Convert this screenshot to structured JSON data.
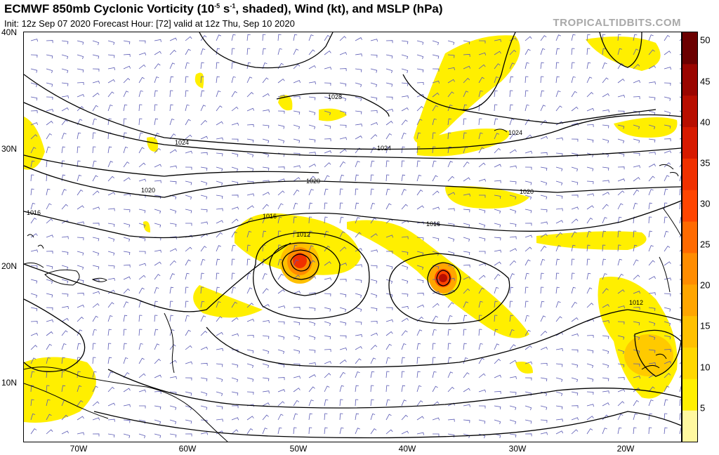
{
  "header": {
    "title_main": "ECMWF 850mb Cyclonic Vorticity (10",
    "title_exp": "-5",
    "title_unit": " s",
    "title_exp2": "-1",
    "title_rest": ", shaded), Wind (kt), and MSLP (hPa)",
    "subtitle": "Init: 12z Sep 07 2020   Forecast Hour: [72]   valid at 12z Thu, Sep 10 2020",
    "brand": "TROPICALTIDBITS.COM"
  },
  "axes": {
    "lat_labels": [
      "40N",
      "30N",
      "20N",
      "10N"
    ],
    "lon_labels": [
      "70W",
      "60W",
      "50W",
      "40W",
      "30W",
      "20W"
    ]
  },
  "isobar_labels": [
    "1028",
    "1024",
    "1024",
    "1024",
    "1020",
    "1020",
    "1020",
    "1016",
    "1016",
    "1016",
    "1012",
    "1012"
  ],
  "colorbar": {
    "ticks": [
      "50",
      "45",
      "40",
      "35",
      "30",
      "25",
      "20",
      "15",
      "10",
      "5"
    ],
    "colors": [
      "#fff8a0",
      "#ffef00",
      "#ffd700",
      "#ffc000",
      "#ffa500",
      "#ff8c00",
      "#ff6a00",
      "#ff4500",
      "#f03000",
      "#d71a00",
      "#b80e00",
      "#9a0500",
      "#6b0000"
    ]
  },
  "colors": {
    "vort_light": "#ffef00",
    "vort_mid": "#ff9f00",
    "vort_core": "#e02000",
    "isobar": "#000000",
    "wind_barb": "#5a5ab4",
    "coast": "#000000"
  }
}
